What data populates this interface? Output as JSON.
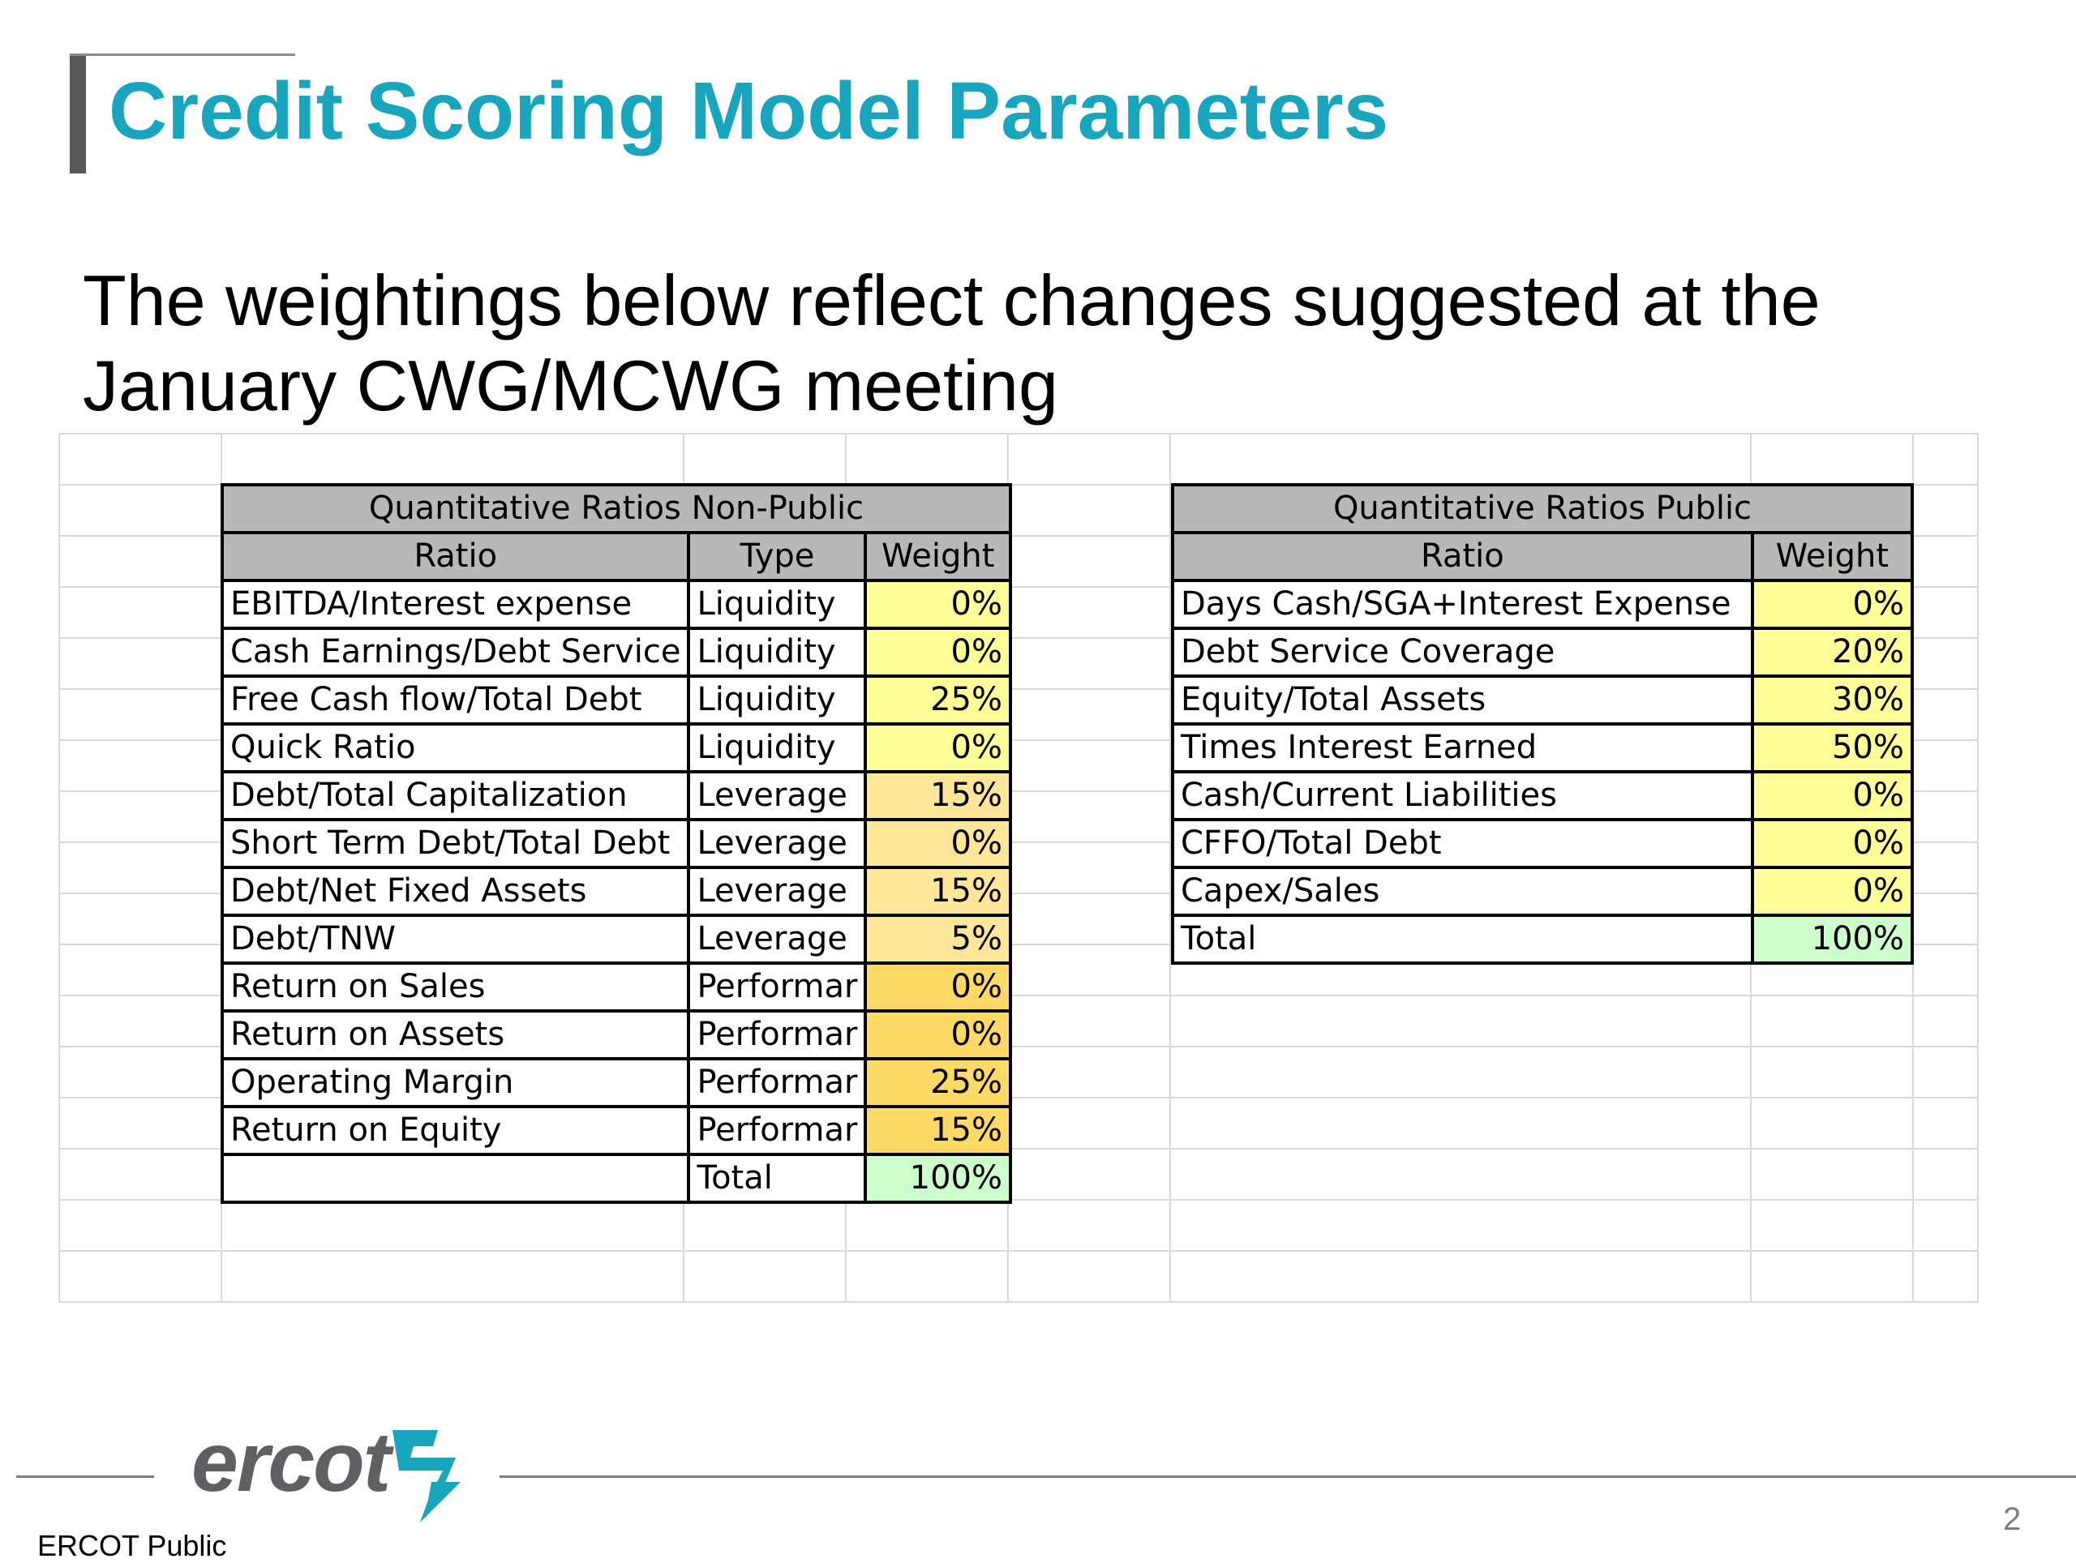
{
  "slide": {
    "title": "Credit Scoring Model Parameters",
    "subtitle": "The weightings below reflect changes suggested at the January CWG/MCWG meeting",
    "page_number": "2"
  },
  "colors": {
    "title": "#1aa5bf",
    "header_fill": "#b8b8b8",
    "liquidity_fill": "#ffff99",
    "leverage_fill": "#ffe699",
    "performance_fill": "#ffd966",
    "total_fill": "#ccffcc",
    "public_weight_fill": "#ffff99"
  },
  "non_public": {
    "title": "Quantitative Ratios Non-Public",
    "headers": [
      "Ratio",
      "Type",
      "Weight"
    ],
    "rows": [
      {
        "ratio": "EBITDA/Interest expense",
        "type": "Liquidity",
        "weight": "0%"
      },
      {
        "ratio": "Cash Earnings/Debt Service",
        "type": "Liquidity",
        "weight": "0%"
      },
      {
        "ratio": "Free Cash flow/Total Debt",
        "type": "Liquidity",
        "weight": "25%"
      },
      {
        "ratio": "Quick Ratio",
        "type": "Liquidity",
        "weight": "0%"
      },
      {
        "ratio": "Debt/Total Capitalization",
        "type": "Leverage",
        "weight": "15%"
      },
      {
        "ratio": "Short Term Debt/Total Debt",
        "type": "Leverage",
        "weight": "0%"
      },
      {
        "ratio": "Debt/Net Fixed Assets",
        "type": "Leverage",
        "weight": "15%"
      },
      {
        "ratio": "Debt/TNW",
        "type": "Leverage",
        "weight": "5%"
      },
      {
        "ratio": "Return on Sales",
        "type": "Performar",
        "weight": "0%"
      },
      {
        "ratio": "Return on Assets",
        "type": "Performar",
        "weight": "0%"
      },
      {
        "ratio": "Operating Margin",
        "type": "Performar",
        "weight": "25%"
      },
      {
        "ratio": "Return on Equity",
        "type": "Performar",
        "weight": "15%"
      }
    ],
    "total_label": "Total",
    "total_value": "100%"
  },
  "public": {
    "title": "Quantitative Ratios Public",
    "headers": [
      "Ratio",
      "Weight"
    ],
    "rows": [
      {
        "ratio": "Days Cash/SGA+Interest Expense",
        "weight": "0%"
      },
      {
        "ratio": "Debt Service Coverage",
        "weight": "20%"
      },
      {
        "ratio": "Equity/Total Assets",
        "weight": "30%"
      },
      {
        "ratio": "Times Interest Earned",
        "weight": "50%"
      },
      {
        "ratio": "Cash/Current Liabilities",
        "weight": "0%"
      },
      {
        "ratio": "CFFO/Total Debt",
        "weight": "0%"
      },
      {
        "ratio": "Capex/Sales",
        "weight": "0%"
      }
    ],
    "total_label": "Total",
    "total_value": "100%"
  },
  "footer": {
    "logo_text": "ercot",
    "label": "ERCOT Public",
    "logo_mark": "ercot-logo-icon"
  }
}
